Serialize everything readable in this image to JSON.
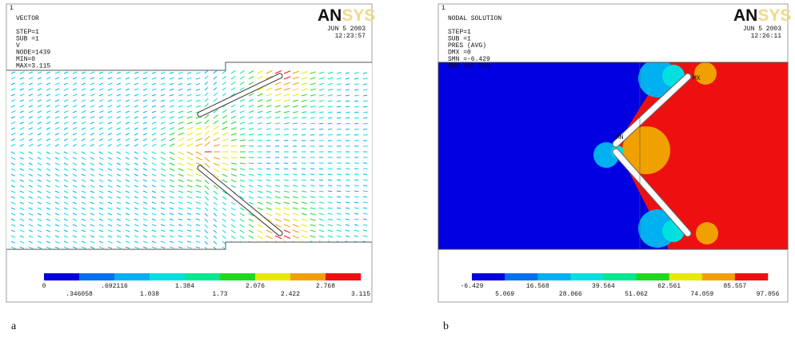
{
  "panels": [
    {
      "label": "a",
      "index": "1",
      "title": "VECTOR",
      "lines": [
        "STEP=1",
        "SUB =1",
        "V",
        "NODE=1439",
        "MIN=0",
        "MAX=3.115"
      ],
      "logo": [
        "AN",
        "SYS"
      ],
      "date": "JUN  5 2003",
      "time": "12:23:57",
      "legend_top": [
        "0",
        ".692116",
        "1.384",
        "2.076",
        "2.768"
      ],
      "legend_bottom": [
        ".346058",
        "1.038",
        "1.73",
        "2.422",
        "3.115"
      ]
    },
    {
      "label": "b",
      "index": "1",
      "title": "NODAL SOLUTION",
      "lines": [
        "STEP=1",
        "SUB =1",
        "PRES      (AVG)",
        "DMX =0",
        "SMN =-6.429",
        "SMX =97.056"
      ],
      "markers": [
        "MN",
        "MX"
      ],
      "logo": [
        "AN",
        "SYS"
      ],
      "date": "JUN  5 2003",
      "time": "12:26:11",
      "legend_top": [
        "-6.429",
        "16.568",
        "39.564",
        "62.561",
        "85.557"
      ],
      "legend_bottom": [
        "5.069",
        "28.066",
        "51.062",
        "74.059",
        "97.056"
      ]
    }
  ]
}
